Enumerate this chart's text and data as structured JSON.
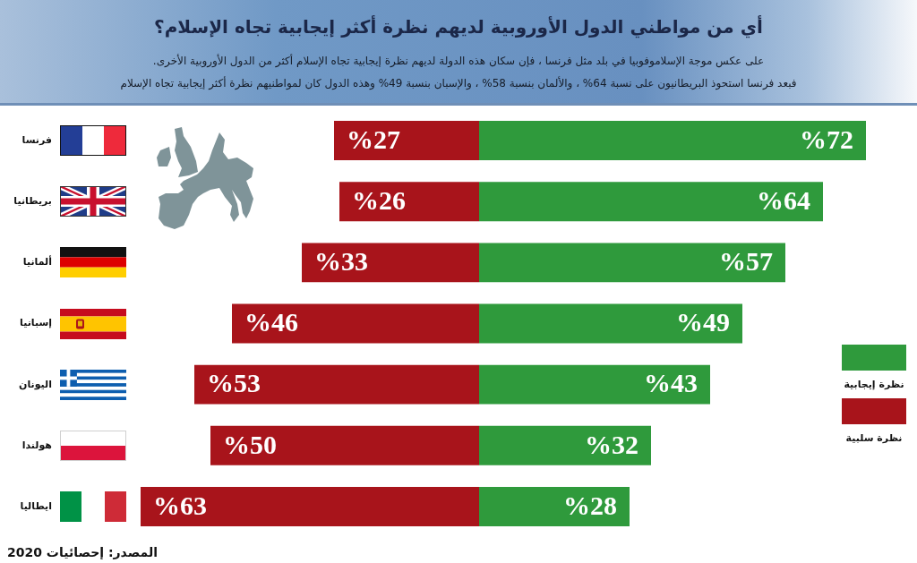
{
  "chart_data": [
    {
      "type": "bar",
      "orientation": "horizontal",
      "title": "أي من مواطني الدول الأوروبية لديهم نظرة أكثر إيجابية تجاه الإسلام؟",
      "subtitle": "على عكس موجة الإسلاموفوبيا في بلد مثل فرنسا ، فإن سكان هذه الدولة لديهم نظرة إيجابية تجاه الإسلام أكثر من الدول الأوروبية الأخرى.\nفبعد فرنسا استحوذ البريطانيون على نسبة 64% ، والألمان بنسبة 58% ، والإسبان بنسبة 49% وهذه الدول كان لمواطنيهم نظرة أكثر إيجابية تجاه الإسلام",
      "categories": [
        null,
        null,
        null,
        null,
        null,
        null,
        null
      ],
      "series": [
        {
          "name": "نظرة إيجابية",
          "color": "#2f9a3c",
          "values": [
            72,
            64,
            57,
            49,
            43,
            32,
            28
          ],
          "value_labels": [
            "%72",
            "%64",
            "%57",
            "%49",
            "%43",
            "%32",
            "%28"
          ]
        }
      ],
      "xlim": [
        0,
        72
      ],
      "tick_labels": false,
      "legend": "right"
    },
    {
      "type": "bar",
      "orientation": "horizontal",
      "categories": [
        "فرنسا",
        "بريطانيا",
        "ألمانيا",
        "إسبانيا",
        "اليونان",
        "هولندا",
        "ايطاليا"
      ],
      "series": [
        {
          "name": "نظرة سلبية",
          "color": "#a8141b",
          "values": [
            27,
            26,
            33,
            46,
            53,
            50,
            63
          ],
          "value_labels": [
            "%27",
            "%26",
            "%33",
            "%46",
            "%53",
            "%50",
            "%63"
          ]
        }
      ],
      "xlim": [
        63,
        0
      ],
      "tick_labels": "y",
      "legend": "right",
      "annotations": [
        "المصدر: إحصائيات 2020"
      ]
    }
  ]
}
